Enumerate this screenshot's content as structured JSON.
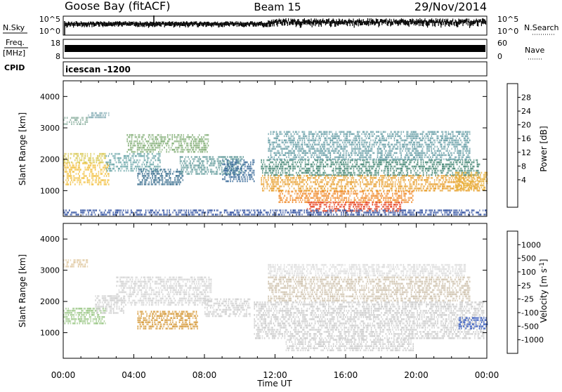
{
  "header": {
    "station": "Goose Bay (fitACF)",
    "beam": "Beam 15",
    "date": "29/Nov/2014"
  },
  "strips": {
    "nsky_label": "N.Sky",
    "nsky_ticks": [
      "10^5",
      "10^0"
    ],
    "nsearch_label": "N.Search",
    "nsearch_ticks": [
      "10^5",
      "10^0"
    ],
    "freq_label": "Freq.",
    "freq_unit": "[MHz]",
    "freq_ticks": [
      "18",
      "8"
    ],
    "nave_label": "Nave",
    "nave_ticks": [
      "60",
      "0"
    ],
    "cpid_label": "CPID",
    "cpid_text": "icescan -1200"
  },
  "chart_data": [
    {
      "type": "heatmap",
      "title": "",
      "quantity": "Power",
      "ylabel": "Slant Range [km]",
      "xlabel": "",
      "ylim": [
        180,
        4500
      ],
      "xlim": [
        0,
        24
      ],
      "yticks": [
        1000,
        2000,
        3000,
        4000
      ],
      "colorbar": {
        "label": "Power [dB]",
        "tick_labels": [
          "28",
          "24",
          "20",
          "16",
          "12",
          "8",
          "4"
        ],
        "colors": [
          "#e8141c",
          "#f05a14",
          "#f59a1a",
          "#f2d21c",
          "#8cc43c",
          "#3c9a56",
          "#2c6a86",
          "#2244b0",
          "#1a22e6"
        ]
      },
      "regions": [
        {
          "t": [
            0.0,
            2.6
          ],
          "r": [
            1200,
            1900
          ],
          "level": "#f2c040"
        },
        {
          "t": [
            0.0,
            2.4
          ],
          "r": [
            1900,
            2200
          ],
          "level": "#d8c850"
        },
        {
          "t": [
            0.0,
            1.4
          ],
          "r": [
            3100,
            3350
          ],
          "level": "#8cb0a0"
        },
        {
          "t": [
            1.4,
            2.6
          ],
          "r": [
            3300,
            3500
          ],
          "level": "#8ab0b8"
        },
        {
          "t": [
            2.4,
            5.5
          ],
          "r": [
            1600,
            2200
          ],
          "level": "#6aa6a8"
        },
        {
          "t": [
            3.6,
            8.2
          ],
          "r": [
            2200,
            2800
          ],
          "level": "#86b07a"
        },
        {
          "t": [
            4.2,
            6.8
          ],
          "r": [
            1200,
            1700
          ],
          "level": "#3a6e8e"
        },
        {
          "t": [
            6.6,
            10.2
          ],
          "r": [
            1500,
            2100
          ],
          "level": "#6aa0a0"
        },
        {
          "t": [
            9.0,
            10.8
          ],
          "r": [
            1300,
            2000
          ],
          "level": "#3c6c9a"
        },
        {
          "t": [
            11.2,
            23.6
          ],
          "r": [
            1000,
            1500
          ],
          "level": "#e8a030"
        },
        {
          "t": [
            11.2,
            23.6
          ],
          "r": [
            1500,
            2000
          ],
          "level": "#4a8a78"
        },
        {
          "t": [
            11.6,
            23.0
          ],
          "r": [
            2000,
            2900
          ],
          "level": "#6aa0a8"
        },
        {
          "t": [
            12.2,
            19.8
          ],
          "r": [
            650,
            1000
          ],
          "level": "#f08a2a"
        },
        {
          "t": [
            13.8,
            19.2
          ],
          "r": [
            380,
            650
          ],
          "level": "#e84a2a"
        },
        {
          "t": [
            0.0,
            24.0
          ],
          "r": [
            200,
            400
          ],
          "level": "#3050a0"
        },
        {
          "t": [
            22.2,
            24.0
          ],
          "r": [
            1000,
            1600
          ],
          "level": "#e8b038"
        }
      ]
    },
    {
      "type": "heatmap",
      "title": "",
      "quantity": "Velocity",
      "ylabel": "Slant Range [km]",
      "xlabel": "Time UT",
      "ylim": [
        180,
        4500
      ],
      "xlim": [
        0,
        24
      ],
      "yticks": [
        1000,
        2000,
        3000,
        4000
      ],
      "xtick_labels": [
        "00:00",
        "04:00",
        "08:00",
        "12:00",
        "16:00",
        "20:00",
        "00:00"
      ],
      "colorbar": {
        "label": "Velocity [m s^-1]",
        "tick_labels": [
          "1000",
          "500",
          "100",
          "25",
          "-25",
          "-100",
          "-500",
          "-1000"
        ],
        "colors": [
          "#1a2ae0",
          "#2a60c8",
          "#3aa066",
          "#70d040",
          "#c8c8c8",
          "#c8c8c8",
          "#f0a020",
          "#f07018",
          "#e8141c"
        ]
      },
      "regions": [
        {
          "t": [
            0.0,
            2.4
          ],
          "r": [
            1300,
            1800
          ],
          "level": "#9cc888"
        },
        {
          "t": [
            0.0,
            1.4
          ],
          "r": [
            3100,
            3350
          ],
          "level": "#e0c8a0"
        },
        {
          "t": [
            1.8,
            3.4
          ],
          "r": [
            1600,
            2200
          ],
          "level": "#d0d0d0"
        },
        {
          "t": [
            3.0,
            8.4
          ],
          "r": [
            1900,
            2800
          ],
          "level": "#d4d4d4"
        },
        {
          "t": [
            4.2,
            7.6
          ],
          "r": [
            1150,
            1700
          ],
          "level": "#d69a3a"
        },
        {
          "t": [
            8.0,
            10.6
          ],
          "r": [
            1500,
            2100
          ],
          "level": "#cfcfcf"
        },
        {
          "t": [
            10.8,
            23.8
          ],
          "r": [
            800,
            2000
          ],
          "level": "#cccccc"
        },
        {
          "t": [
            11.6,
            23.0
          ],
          "r": [
            2000,
            2800
          ],
          "level": "#d0c4b0"
        },
        {
          "t": [
            11.6,
            22.8
          ],
          "r": [
            2800,
            3200
          ],
          "level": "#dcdcdc"
        },
        {
          "t": [
            12.6,
            19.8
          ],
          "r": [
            400,
            800
          ],
          "level": "#cdcdcd"
        },
        {
          "t": [
            22.4,
            24.0
          ],
          "r": [
            1100,
            1500
          ],
          "level": "#3a5ec0"
        }
      ]
    }
  ],
  "colors": {
    "frame": "#000000",
    "background": "#ffffff"
  }
}
